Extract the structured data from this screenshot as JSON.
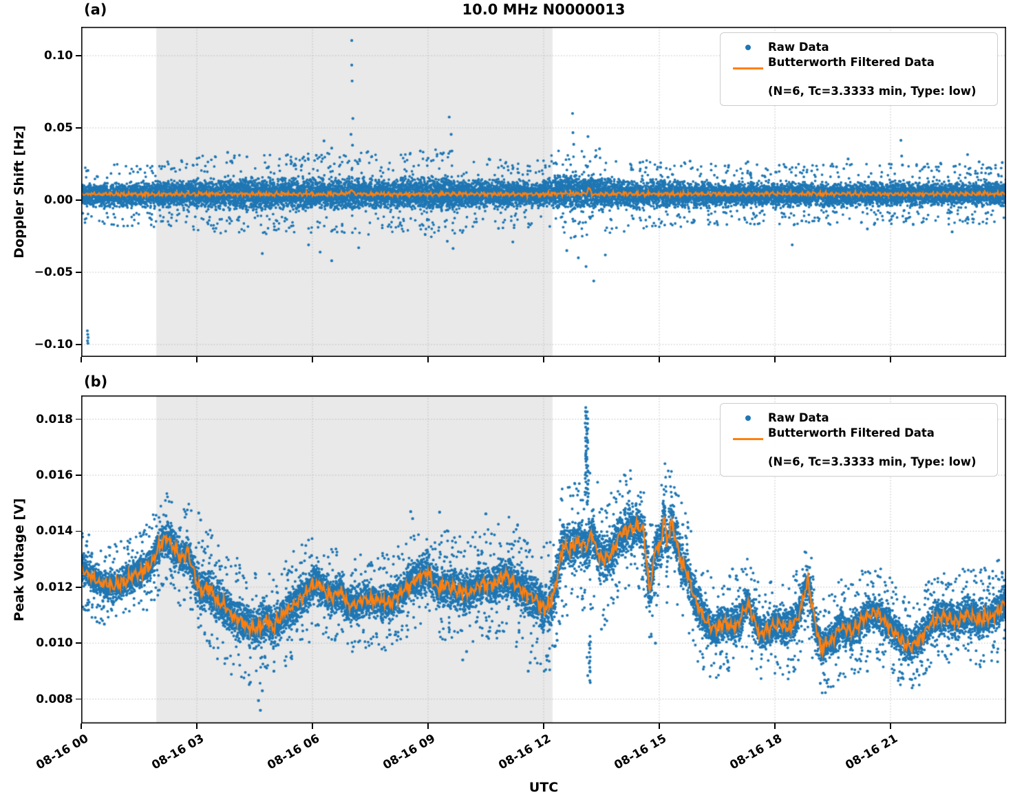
{
  "title": "10.0 MHz N0000013",
  "xlabel": "UTC",
  "legend": {
    "raw_label": "Raw Data",
    "filtered_label": "Butterworth Filtered Data",
    "filtered_sublabel": "(N=6, Tc=3.3333 min, Type: low)"
  },
  "colors": {
    "raw": "#1f77b4",
    "filtered": "#ff7f0e",
    "shade": "#e9e9e9",
    "grid": "#b9b9b9",
    "spine": "#000000"
  },
  "chart_data": [
    {
      "type": "scatter",
      "panel_label": "(a)",
      "ylabel": "Doppler Shift [Hz]",
      "xlim": [
        0,
        24
      ],
      "ylim": [
        -0.1086,
        0.12
      ],
      "yticks": {
        "values": [
          0.1,
          0.05,
          0.0,
          -0.05,
          -0.1
        ],
        "labels": [
          "0.10",
          "0.05",
          "0.00",
          "−0.05",
          "−0.10"
        ]
      },
      "xticks": {
        "hours": [
          0,
          3,
          6,
          9,
          12,
          15,
          18,
          21
        ],
        "labels": [
          "08-16 00",
          "08-16 03",
          "08-16 06",
          "08-16 09",
          "08-16 12",
          "08-16 15",
          "08-16 18",
          "08-16 21"
        ]
      },
      "shaded_region": {
        "x0": 1.95,
        "x1": 12.23
      },
      "filtered": {
        "wiggle_amp": 0.0013,
        "x": [
          0,
          2,
          4,
          6,
          6.9,
          7.0,
          7.1,
          8,
          10,
          12,
          12.5,
          13,
          13.1,
          13.17,
          13.25,
          14,
          16,
          18,
          20,
          22,
          24
        ],
        "y": [
          0.0042,
          0.004,
          0.0043,
          0.0041,
          0.0042,
          0.0075,
          0.0042,
          0.0041,
          0.0043,
          0.004,
          0.0045,
          0.0044,
          0.0041,
          0.0085,
          0.004,
          0.0043,
          0.0042,
          0.0044,
          0.0042,
          0.0043,
          0.0044
        ]
      },
      "raw_band": {
        "density": 12,
        "dot_radius": 1.9,
        "fringe_prob": 0.055,
        "x": [
          0,
          1,
          2,
          2.5,
          3,
          3.5,
          4,
          4.5,
          5,
          5.5,
          6,
          6.5,
          7,
          7.5,
          8,
          8.5,
          9,
          9.5,
          10,
          10.5,
          11,
          11.5,
          12,
          12.3,
          12.6,
          13,
          13.4,
          13.7,
          14,
          14.5,
          15,
          16,
          17,
          18,
          19,
          20,
          21,
          22,
          23,
          24
        ],
        "center": [
          0.0035,
          0.0035,
          0.0038,
          0.004,
          0.0042,
          0.0044,
          0.0044,
          0.0042,
          0.004,
          0.0042,
          0.0044,
          0.0044,
          0.0044,
          0.0043,
          0.004,
          0.0042,
          0.0045,
          0.0045,
          0.004,
          0.004,
          0.004,
          0.004,
          0.004,
          0.0055,
          0.0058,
          0.0058,
          0.0055,
          0.0045,
          0.0042,
          0.004,
          0.004,
          0.004,
          0.004,
          0.004,
          0.004,
          0.004,
          0.0045,
          0.0042,
          0.0042,
          0.0045
        ],
        "halfwidth": [
          0.0105,
          0.011,
          0.0115,
          0.012,
          0.0135,
          0.0145,
          0.015,
          0.0148,
          0.014,
          0.0145,
          0.015,
          0.0148,
          0.015,
          0.015,
          0.014,
          0.0148,
          0.0155,
          0.016,
          0.013,
          0.0128,
          0.0125,
          0.0122,
          0.0125,
          0.015,
          0.0165,
          0.0168,
          0.016,
          0.014,
          0.0135,
          0.0125,
          0.012,
          0.0113,
          0.011,
          0.011,
          0.0108,
          0.0108,
          0.0112,
          0.0108,
          0.0108,
          0.0115
        ]
      },
      "outliers": [
        [
          0.16,
          -0.0905
        ],
        [
          0.17,
          -0.093
        ],
        [
          0.18,
          -0.0952
        ],
        [
          0.165,
          -0.0975
        ],
        [
          0.175,
          -0.0992
        ],
        [
          7.02,
          0.1105
        ],
        [
          7.02,
          0.0935
        ],
        [
          7.03,
          0.0825
        ],
        [
          7.05,
          0.0565
        ],
        [
          7.0,
          0.0455
        ],
        [
          7.04,
          0.038
        ],
        [
          9.55,
          0.0575
        ],
        [
          9.6,
          0.0455
        ],
        [
          9.62,
          0.034
        ],
        [
          9.65,
          -0.0335
        ],
        [
          9.5,
          -0.0285
        ],
        [
          12.75,
          0.06
        ],
        [
          12.76,
          0.0467
        ],
        [
          12.78,
          0.0386
        ],
        [
          13.05,
          0.03
        ],
        [
          13.15,
          0.044
        ],
        [
          13.45,
          0.0355
        ],
        [
          12.6,
          -0.035
        ],
        [
          12.9,
          -0.04
        ],
        [
          13.1,
          -0.046
        ],
        [
          13.3,
          -0.056
        ],
        [
          13.6,
          -0.038
        ],
        [
          21.27,
          0.0414
        ],
        [
          21.29,
          0.0305
        ],
        [
          21.31,
          0.0243
        ],
        [
          6.3,
          0.041
        ],
        [
          6.5,
          0.036
        ],
        [
          6.1,
          0.031
        ],
        [
          5.9,
          -0.031
        ],
        [
          6.2,
          -0.036
        ],
        [
          6.5,
          -0.042
        ],
        [
          7.2,
          -0.033
        ],
        [
          4.7,
          -0.037
        ],
        [
          3.8,
          0.033
        ],
        [
          4.3,
          0.03
        ],
        [
          8.8,
          0.034
        ],
        [
          9.0,
          0.029
        ],
        [
          10.6,
          0.028
        ],
        [
          11.2,
          -0.029
        ],
        [
          14.5,
          0.026
        ],
        [
          15.8,
          0.027
        ],
        [
          16.8,
          0.024
        ],
        [
          17.3,
          0.0265
        ],
        [
          18.45,
          -0.031
        ],
        [
          19.6,
          0.023
        ],
        [
          19.9,
          0.0285
        ],
        [
          20.4,
          -0.02
        ],
        [
          22.3,
          0.0255
        ],
        [
          22.6,
          -0.022
        ],
        [
          23.0,
          0.0315
        ],
        [
          23.3,
          0.0265
        ],
        [
          23.5,
          0.022
        ],
        [
          23.9,
          0.026
        ]
      ],
      "outlier_columns": []
    },
    {
      "type": "scatter",
      "panel_label": "(b)",
      "ylabel": "Peak Voltage [V]",
      "xlim": [
        0,
        24
      ],
      "ylim": [
        0.00713,
        0.01885
      ],
      "yticks": {
        "values": [
          0.018,
          0.016,
          0.014,
          0.012,
          0.01,
          0.008
        ],
        "labels": [
          "0.018",
          "0.016",
          "0.014",
          "0.012",
          "0.010",
          "0.008"
        ]
      },
      "xticks": {
        "hours": [
          0,
          3,
          6,
          9,
          12,
          15,
          18,
          21
        ],
        "labels": [
          "08-16 00",
          "08-16 03",
          "08-16 06",
          "08-16 09",
          "08-16 12",
          "08-16 15",
          "08-16 18",
          "08-16 21"
        ]
      },
      "shaded_region": {
        "x0": 1.95,
        "x1": 12.23
      },
      "filtered": {
        "wiggle_amp": 0.00022,
        "x": [
          0,
          0.4,
          0.8,
          1.1,
          1.5,
          1.8,
          2.0,
          2.2,
          2.4,
          2.6,
          2.75,
          2.95,
          3.1,
          3.3,
          3.5,
          3.7,
          3.9,
          4.1,
          4.3,
          4.6,
          4.8,
          5.0,
          5.3,
          5.5,
          5.7,
          5.9,
          6.1,
          6.3,
          6.5,
          6.7,
          6.9,
          7.1,
          7.4,
          7.7,
          8.0,
          8.3,
          8.6,
          9.0,
          9.2,
          9.5,
          9.8,
          10.1,
          10.4,
          10.7,
          11.0,
          11.2,
          11.5,
          11.8,
          12.05,
          12.25,
          12.5,
          12.65,
          12.9,
          13.1,
          13.25,
          13.45,
          13.6,
          13.8,
          14.0,
          14.2,
          14.45,
          14.6,
          14.75,
          14.9,
          15.05,
          15.12,
          15.2,
          15.3,
          15.42,
          15.55,
          15.75,
          15.95,
          16.15,
          16.4,
          16.7,
          17.0,
          17.3,
          17.6,
          17.85,
          18.1,
          18.35,
          18.6,
          18.85,
          19.0,
          19.2,
          19.45,
          19.7,
          20.0,
          20.3,
          20.6,
          20.9,
          21.2,
          21.5,
          21.8,
          22.1,
          22.4,
          22.7,
          23.0,
          23.3,
          23.6,
          23.85,
          24.0
        ],
        "y": [
          0.01268,
          0.01222,
          0.01203,
          0.0122,
          0.01252,
          0.01278,
          0.0134,
          0.01378,
          0.01342,
          0.013,
          0.01328,
          0.01243,
          0.01176,
          0.01203,
          0.01152,
          0.01136,
          0.01101,
          0.01086,
          0.01062,
          0.01051,
          0.01085,
          0.0106,
          0.0111,
          0.01135,
          0.0116,
          0.01186,
          0.01218,
          0.01193,
          0.0116,
          0.01186,
          0.01143,
          0.01136,
          0.0116,
          0.0115,
          0.01143,
          0.01182,
          0.0122,
          0.01256,
          0.01199,
          0.01207,
          0.01186,
          0.01182,
          0.01215,
          0.01207,
          0.01247,
          0.0122,
          0.01182,
          0.01157,
          0.0112,
          0.01165,
          0.0135,
          0.0133,
          0.01365,
          0.0134,
          0.0139,
          0.01305,
          0.013,
          0.01328,
          0.0139,
          0.01405,
          0.0142,
          0.014,
          0.01175,
          0.0134,
          0.01355,
          0.0146,
          0.01345,
          0.0144,
          0.0138,
          0.013,
          0.0124,
          0.01145,
          0.0109,
          0.01048,
          0.01073,
          0.0106,
          0.01146,
          0.01032,
          0.01048,
          0.01073,
          0.0105,
          0.0109,
          0.01224,
          0.011,
          0.00983,
          0.01007,
          0.01056,
          0.0104,
          0.01089,
          0.01113,
          0.01073,
          0.01024,
          0.00983,
          0.01024,
          0.01081,
          0.01097,
          0.01073,
          0.01105,
          0.01081,
          0.01097,
          0.0112,
          0.01154
        ]
      },
      "raw_band": {
        "density": 11,
        "dot_radius": 2.0,
        "fringe_prob": 0.07,
        "center": "filtered",
        "x": [
          0,
          1,
          2,
          2.5,
          3,
          3.5,
          4,
          4.5,
          5,
          5.5,
          6,
          6.5,
          7,
          7.5,
          8,
          8.5,
          9,
          9.5,
          10,
          10.5,
          11,
          11.5,
          12,
          12.3,
          12.6,
          13,
          13.3,
          13.6,
          14,
          14.5,
          15,
          15.4,
          15.8,
          16.2,
          16.6,
          17,
          18,
          19,
          20,
          21,
          22,
          23,
          24
        ],
        "halfwidth": [
          0.00075,
          0.0008,
          0.00085,
          0.0009,
          0.00105,
          0.0011,
          0.0011,
          0.0011,
          0.001,
          0.001,
          0.00095,
          0.00095,
          0.0009,
          0.0009,
          0.0009,
          0.00095,
          0.00105,
          0.001,
          0.00105,
          0.001,
          0.0011,
          0.0012,
          0.0012,
          0.0013,
          0.00125,
          0.00125,
          0.0014,
          0.0012,
          0.00115,
          0.00115,
          0.0012,
          0.0013,
          0.0011,
          0.00095,
          0.0009,
          0.0009,
          0.0009,
          0.00095,
          0.0009,
          0.0009,
          0.00085,
          0.0009,
          0.00095
        ]
      },
      "outliers": [
        [
          2.2,
          0.01455
        ],
        [
          2.25,
          0.0143
        ],
        [
          3.05,
          0.01465
        ],
        [
          3.1,
          0.0144
        ],
        [
          4.6,
          0.00795
        ],
        [
          4.65,
          0.0076
        ],
        [
          4.7,
          0.0083
        ],
        [
          5.0,
          0.009
        ],
        [
          8.55,
          0.0147
        ],
        [
          8.6,
          0.01445
        ],
        [
          9.3,
          0.01468
        ],
        [
          10.5,
          0.01462
        ],
        [
          9.9,
          0.0094
        ],
        [
          10.0,
          0.0097
        ],
        [
          11.6,
          0.009
        ],
        [
          11.65,
          0.0093
        ],
        [
          12.3,
          0.0099
        ],
        [
          12.35,
          0.0101
        ],
        [
          13.5,
          0.0105
        ],
        [
          14.9,
          0.01
        ],
        [
          16.9,
          0.01265
        ],
        [
          17.0,
          0.0124
        ],
        [
          18.9,
          0.0127
        ],
        [
          20.4,
          0.009
        ],
        [
          21.55,
          0.0087
        ],
        [
          23.9,
          0.0125
        ],
        [
          23.95,
          0.01225
        ],
        [
          0.6,
          0.01068
        ]
      ],
      "outlier_columns": [
        {
          "x": 13.12,
          "y0": 0.015,
          "y1": 0.0184,
          "n": 55
        },
        {
          "x": 13.17,
          "y0": 0.0086,
          "y1": 0.0102,
          "n": 16
        }
      ]
    }
  ]
}
